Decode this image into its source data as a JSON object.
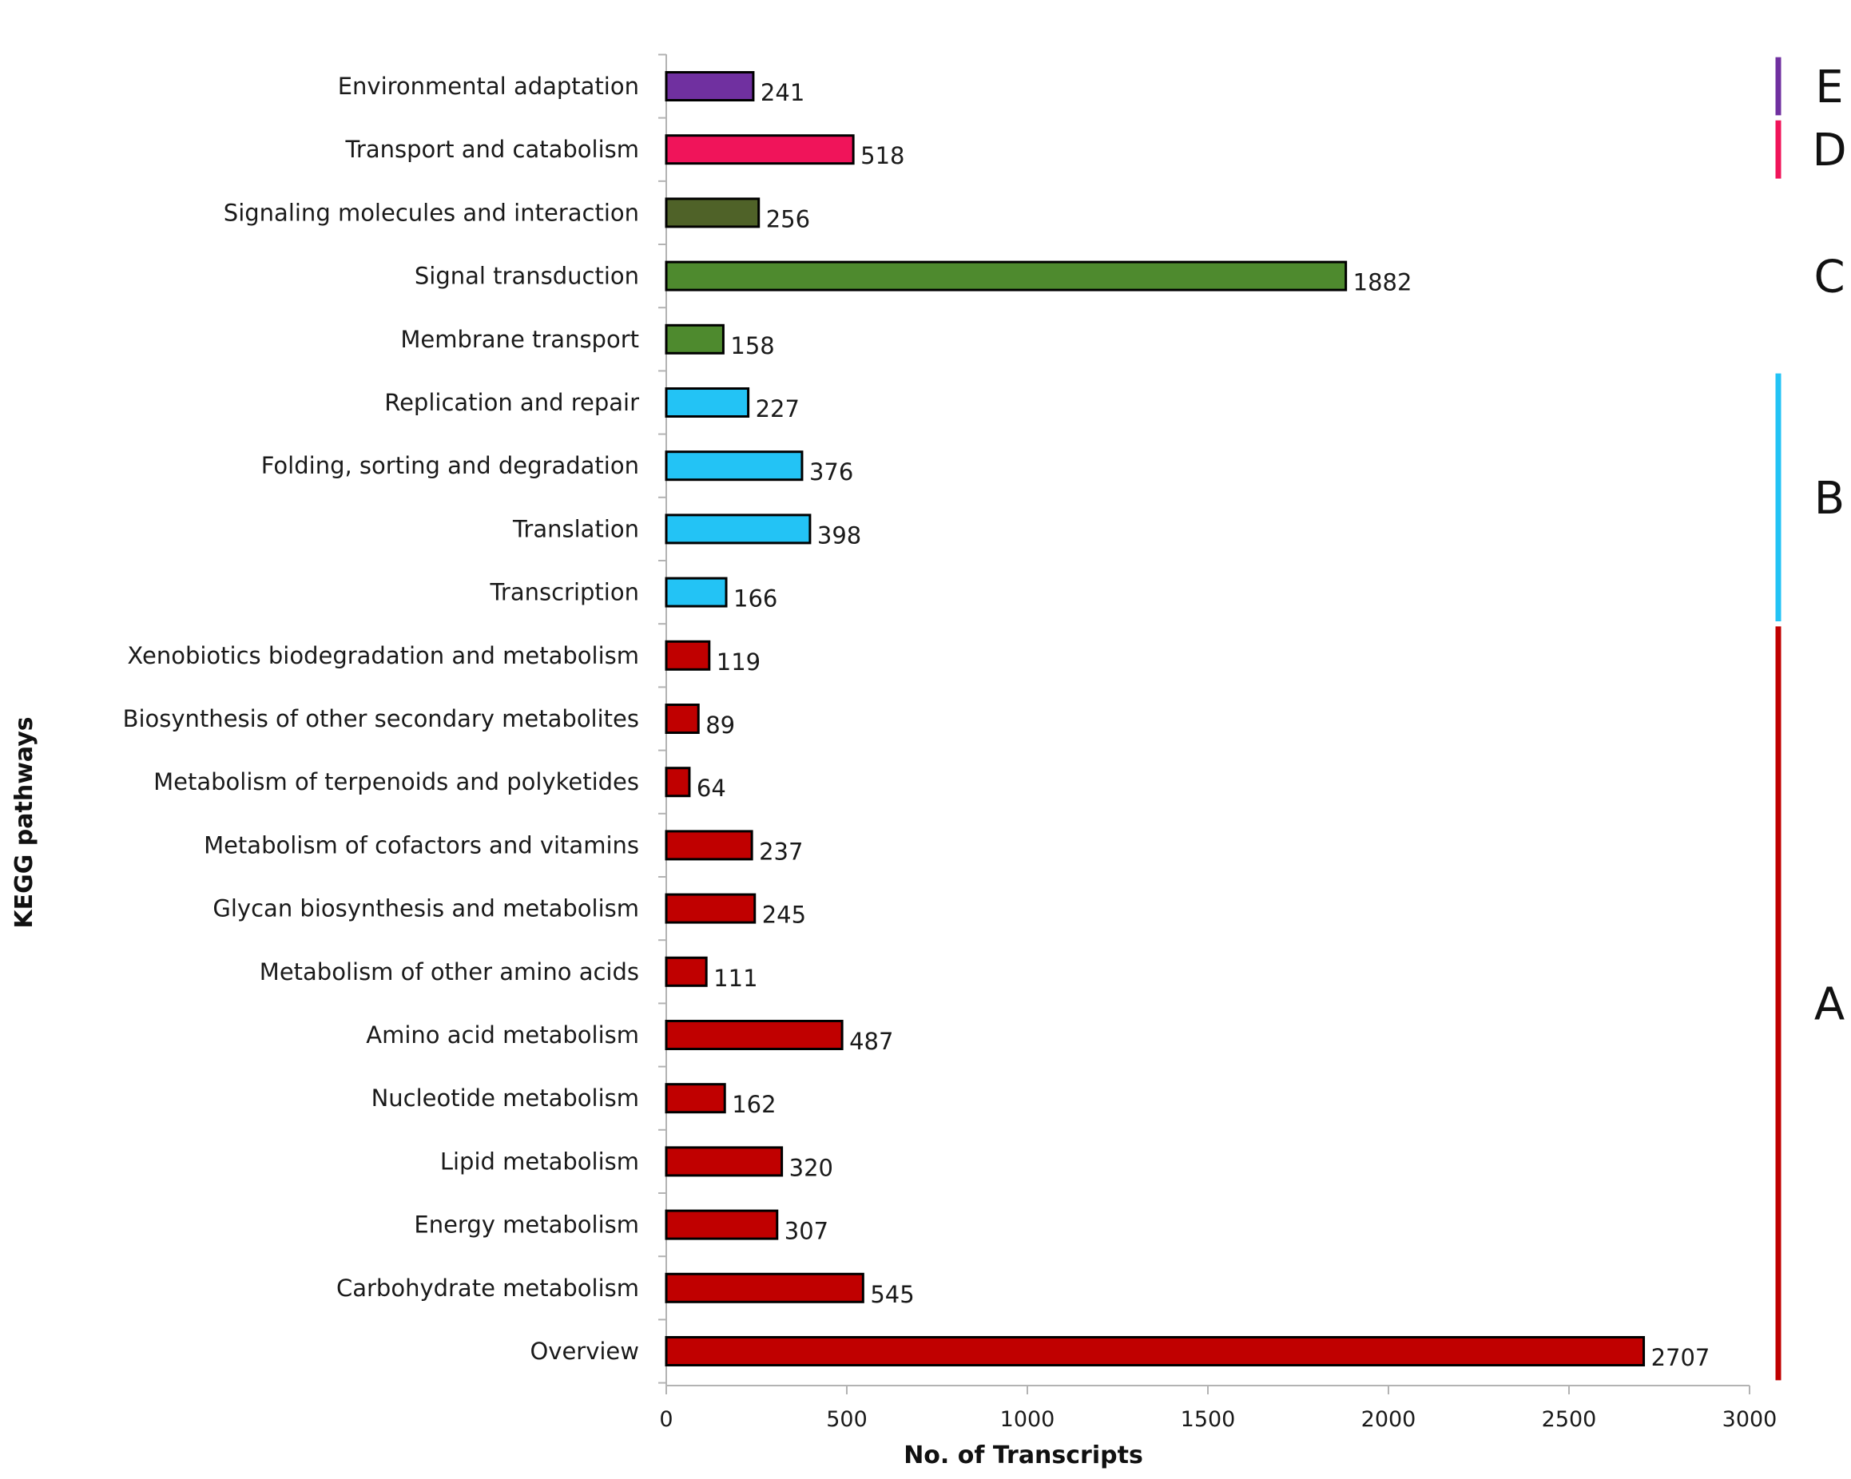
{
  "chart_data": {
    "type": "bar",
    "orientation": "horizontal",
    "title": "",
    "xlabel": "No. of Transcripts",
    "ylabel": "KEGG pathways",
    "xlim": [
      0,
      3000
    ],
    "xticks": [
      0,
      500,
      1000,
      1500,
      2000,
      2500,
      3000
    ],
    "grid": false,
    "categories": [
      "Environmental adaptation",
      "Transport and catabolism",
      "Signaling molecules and interaction",
      "Signal transduction",
      "Membrane transport",
      "Replication and repair",
      "Folding, sorting and degradation",
      "Translation",
      "Transcription",
      "Xenobiotics biodegradation and metabolism",
      "Biosynthesis of other secondary metabolites",
      "Metabolism of terpenoids and polyketides",
      "Metabolism of cofactors and vitamins",
      "Glycan biosynthesis and metabolism",
      "Metabolism of other amino acids",
      "Amino acid metabolism",
      "Nucleotide metabolism",
      "Lipid metabolism",
      "Energy metabolism",
      "Carbohydrate metabolism",
      "Overview"
    ],
    "values": [
      241,
      518,
      256,
      1882,
      158,
      227,
      376,
      398,
      166,
      119,
      89,
      64,
      237,
      245,
      111,
      487,
      162,
      320,
      307,
      545,
      2707
    ],
    "bar_colors": [
      "#7030a0",
      "#f0145a",
      "#4f6228",
      "#4e8a2e",
      "#4e8a2e",
      "#23c3f5",
      "#23c3f5",
      "#23c3f5",
      "#23c3f5",
      "#c00000",
      "#c00000",
      "#c00000",
      "#c00000",
      "#c00000",
      "#c00000",
      "#c00000",
      "#c00000",
      "#c00000",
      "#c00000",
      "#c00000",
      "#c00000"
    ],
    "groups": [
      {
        "letter": "E",
        "color": "#7030a0",
        "from": "Environmental adaptation",
        "to": "Environmental adaptation"
      },
      {
        "letter": "D",
        "color": "#f0145a",
        "from": "Transport and catabolism",
        "to": "Transport and catabolism"
      },
      {
        "letter": "C",
        "color": "#ffffff",
        "from": "Signaling molecules and interaction",
        "to": "Membrane transport"
      },
      {
        "letter": "B",
        "color": "#23c3f5",
        "from": "Replication and repair",
        "to": "Transcription"
      },
      {
        "letter": "A",
        "color": "#c00000",
        "from": "Xenobiotics biodegradation and metabolism",
        "to": "Overview"
      }
    ]
  }
}
